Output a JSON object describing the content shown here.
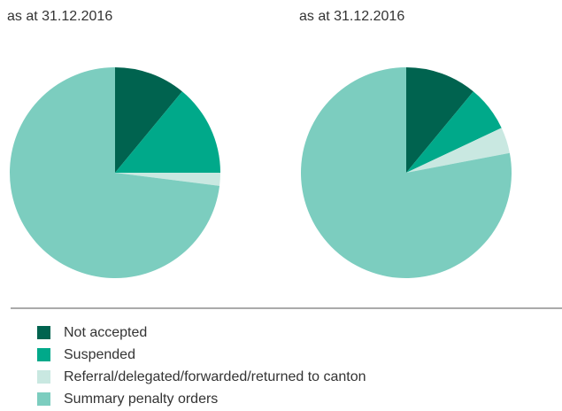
{
  "chart_data": [
    {
      "type": "pie",
      "title": "as at 31.12.2016",
      "values": [
        11,
        14,
        2,
        73
      ]
    },
    {
      "type": "pie",
      "title": "as at 31.12.2016",
      "values": [
        11,
        7,
        4,
        78
      ]
    }
  ],
  "legend": {
    "items": [
      "Not accepted",
      "Suspended",
      "Referral/delegated/forwarded/returned to canton",
      "Summary penalty orders"
    ],
    "colors": [
      "#00634f",
      "#00a98a",
      "#c9e8e1",
      "#7ccdbf"
    ]
  }
}
